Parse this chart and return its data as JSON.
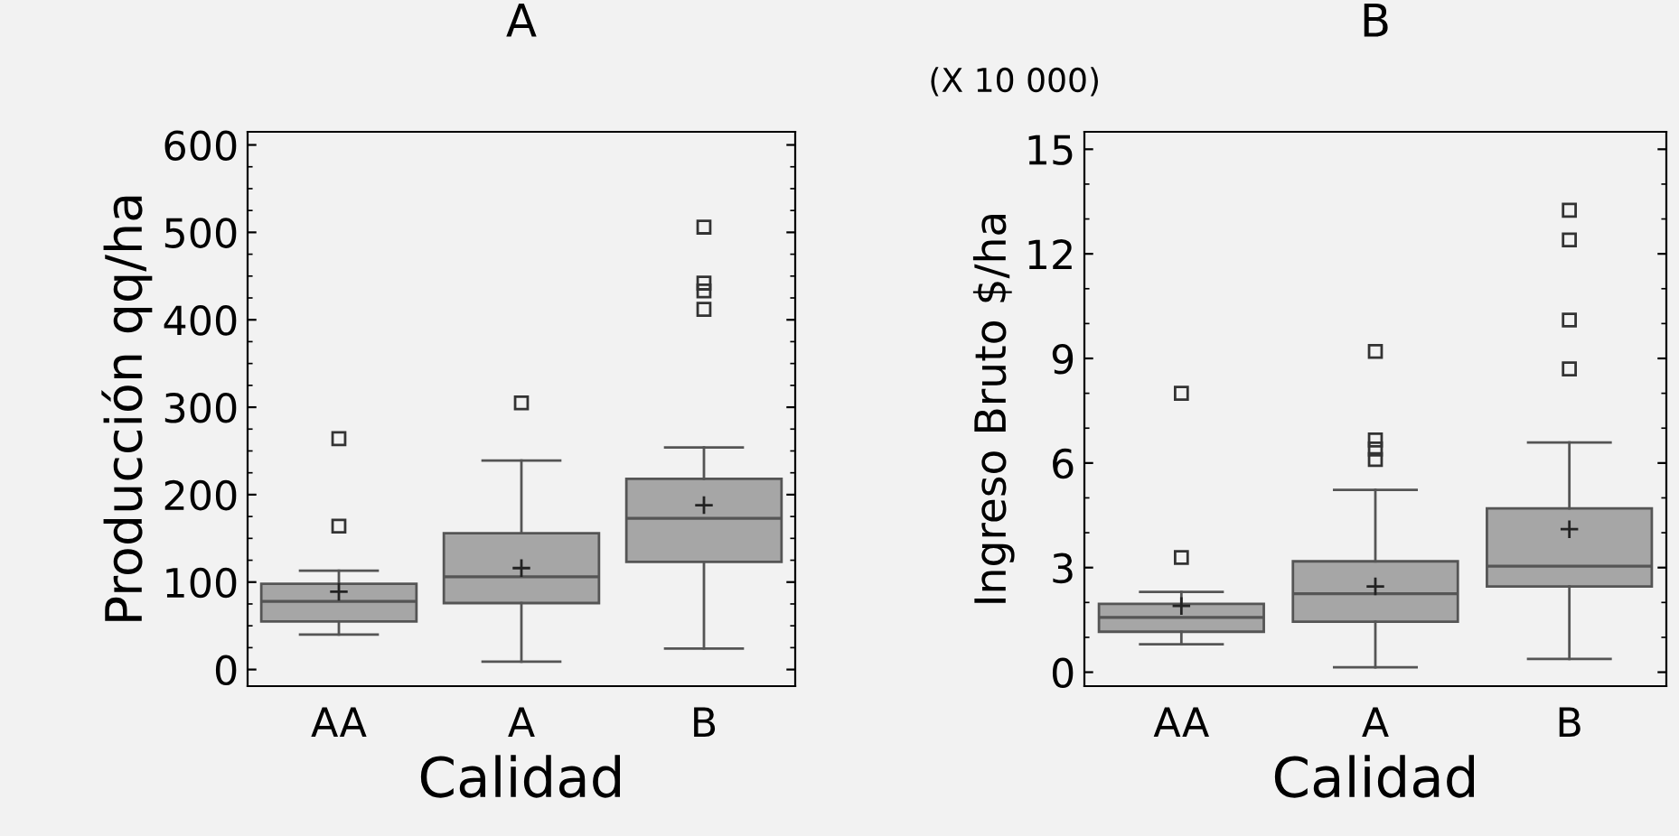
{
  "chart_data": [
    {
      "type": "box",
      "title": "A",
      "xlabel": "Calidad",
      "ylabel": "Producción qq/ha",
      "categories": [
        "AA",
        "A",
        "B"
      ],
      "color": "#a6a6a6",
      "ylim": [
        -19,
        615
      ],
      "yticks": [
        0,
        100,
        200,
        300,
        400,
        500,
        600
      ],
      "grid": false,
      "boxes": [
        {
          "low": 40,
          "q1": 55,
          "median": 78,
          "q3": 98,
          "high": 113,
          "mean": 89,
          "outliers": [
            164,
            264
          ]
        },
        {
          "low": 9,
          "q1": 76,
          "median": 106,
          "q3": 156,
          "high": 239,
          "mean": 116,
          "outliers": [
            305
          ]
        },
        {
          "low": 24,
          "q1": 123,
          "median": 173,
          "q3": 218,
          "high": 254,
          "mean": 188,
          "outliers": [
            412,
            433,
            442,
            506
          ]
        }
      ]
    },
    {
      "type": "box",
      "title": "B",
      "xlabel": "Calidad",
      "ylabel": "Ingreso Bruto $/ha",
      "annotations": [
        "(X 10 000)"
      ],
      "categories": [
        "AA",
        "A",
        "B"
      ],
      "color": "#a6a6a6",
      "ylim": [
        -0.4,
        15.5
      ],
      "yticks": [
        0,
        3,
        6,
        9,
        12,
        15
      ],
      "grid": false,
      "boxes": [
        {
          "low": 0.8,
          "q1": 1.16,
          "median": 1.57,
          "q3": 1.96,
          "high": 2.3,
          "mean": 1.9,
          "outliers": [
            3.29,
            8.0
          ]
        },
        {
          "low": 0.14,
          "q1": 1.45,
          "median": 2.25,
          "q3": 3.18,
          "high": 5.23,
          "mean": 2.46,
          "outliers": [
            6.1,
            6.4,
            6.66,
            9.2
          ]
        },
        {
          "low": 0.38,
          "q1": 2.46,
          "median": 3.04,
          "q3": 4.7,
          "high": 6.59,
          "mean": 4.1,
          "outliers": [
            8.7,
            10.1,
            12.4,
            13.25
          ]
        }
      ]
    }
  ]
}
